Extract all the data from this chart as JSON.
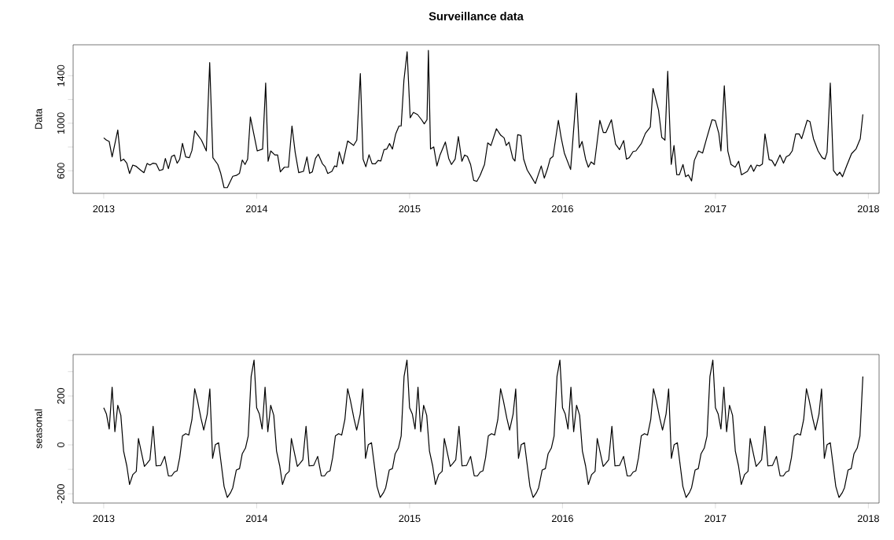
{
  "chart_data": [
    {
      "type": "line",
      "title": "Surveillance data",
      "ylabel": "Data",
      "color": "#000000",
      "xlim": [
        2012.8,
        2018.07
      ],
      "ylim": [
        410,
        1660
      ],
      "xticks": [
        2013,
        2014,
        2015,
        2016,
        2017,
        2018
      ],
      "yticks": [
        600,
        {
          "value": 800,
          "label": null
        },
        1000,
        {
          "value": 1200,
          "label": null
        },
        1400
      ],
      "x": [
        2013.0,
        2013.018,
        2013.036,
        2013.055,
        2013.092,
        2013.112,
        2013.13,
        2013.151,
        2013.169,
        2013.19,
        2013.213,
        2013.24,
        2013.263,
        2013.284,
        2013.302,
        2013.323,
        2013.343,
        2013.364,
        2013.387,
        2013.403,
        2013.423,
        2013.444,
        2013.462,
        2013.48,
        2013.497,
        2013.515,
        2013.536,
        2013.56,
        2013.577,
        2013.595,
        2013.639,
        2013.671,
        2013.693,
        2013.714,
        2013.746,
        2013.764,
        2013.787,
        2013.808,
        2013.844,
        2013.867,
        2013.888,
        2013.906,
        2013.924,
        2013.941,
        2013.959,
        2014.004,
        2014.039,
        2014.059,
        2014.075,
        2014.092,
        2014.119,
        2014.137,
        2014.155,
        2014.181,
        2014.208,
        2014.231,
        2014.252,
        2014.275,
        2014.306,
        2014.329,
        2014.346,
        2014.364,
        2014.385,
        2014.403,
        2014.43,
        2014.448,
        2014.465,
        2014.492,
        2014.51,
        2014.524,
        2014.54,
        2014.563,
        2014.595,
        2014.634,
        2014.655,
        2014.678,
        2014.696,
        2014.714,
        2014.735,
        2014.755,
        2014.776,
        2014.794,
        2014.812,
        2014.833,
        2014.851,
        2014.869,
        2014.888,
        2014.909,
        2014.931,
        2014.945,
        2014.963,
        2014.984,
        2015.004,
        2015.025,
        2015.052,
        2015.078,
        2015.096,
        2015.114,
        2015.123,
        2015.137,
        2015.158,
        2015.179,
        2015.199,
        2015.234,
        2015.256,
        2015.274,
        2015.298,
        2015.319,
        2015.342,
        2015.36,
        2015.378,
        2015.399,
        2015.419,
        2015.44,
        2015.461,
        2015.49,
        2015.511,
        2015.532,
        2015.568,
        2015.596,
        2015.618,
        2015.632,
        2015.65,
        2015.675,
        2015.689,
        2015.707,
        2015.728,
        2015.746,
        2015.769,
        2015.796,
        2015.822,
        2015.84,
        2015.861,
        2015.881,
        2015.902,
        2015.92,
        2015.938,
        2015.973,
        2015.991,
        2016.012,
        2016.053,
        2016.091,
        2016.11,
        2016.128,
        2016.151,
        2016.169,
        2016.187,
        2016.208,
        2016.244,
        2016.267,
        2016.284,
        2016.32,
        2016.347,
        2016.373,
        2016.4,
        2016.418,
        2016.436,
        2016.462,
        2016.48,
        2016.516,
        2016.542,
        2016.574,
        2016.592,
        2016.628,
        2016.649,
        2016.67,
        2016.688,
        2016.711,
        2016.729,
        2016.747,
        2016.764,
        2016.788,
        2016.805,
        2016.823,
        2016.844,
        2016.862,
        2016.889,
        2016.916,
        2016.942,
        2016.978,
        2016.999,
        2017.022,
        2017.036,
        2017.058,
        2017.081,
        2017.102,
        2017.129,
        2017.152,
        2017.17,
        2017.209,
        2017.232,
        2017.25,
        2017.271,
        2017.289,
        2017.307,
        2017.324,
        2017.351,
        2017.369,
        2017.39,
        2017.422,
        2017.445,
        2017.463,
        2017.484,
        2017.502,
        2017.525,
        2017.547,
        2017.564,
        2017.6,
        2017.618,
        2017.641,
        2017.671,
        2017.698,
        2017.716,
        2017.73,
        2017.751,
        2017.772,
        2017.796,
        2017.813,
        2017.831,
        2017.858,
        2017.89,
        2017.92,
        2017.947,
        2017.964
      ],
      "values": [
        877,
        858,
        846,
        717,
        943,
        682,
        698,
        664,
        577,
        648,
        637,
        607,
        584,
        662,
        648,
        664,
        659,
        602,
        611,
        703,
        618,
        721,
        733,
        664,
        698,
        831,
        717,
        710,
        771,
        936,
        858,
        767,
        1510,
        710,
        653,
        584,
        458,
        458,
        554,
        561,
        579,
        691,
        653,
        698,
        1053,
        767,
        783,
        1338,
        680,
        767,
        733,
        733,
        591,
        630,
        630,
        977,
        755,
        584,
        595,
        717,
        579,
        591,
        705,
        739,
        659,
        634,
        577,
        595,
        641,
        634,
        760,
        657,
        851,
        813,
        858,
        1418,
        698,
        634,
        735,
        659,
        659,
        687,
        682,
        778,
        783,
        829,
        783,
        909,
        977,
        977,
        1361,
        1601,
        1046,
        1091,
        1073,
        1030,
        995,
        1030,
        1613,
        783,
        801,
        641,
        733,
        842,
        703,
        653,
        698,
        888,
        680,
        733,
        721,
        653,
        520,
        511,
        561,
        653,
        835,
        813,
        954,
        899,
        877,
        813,
        840,
        705,
        682,
        904,
        897,
        698,
        607,
        550,
        493,
        561,
        641,
        538,
        618,
        703,
        721,
        1025,
        881,
        749,
        611,
        1254,
        794,
        847,
        698,
        630,
        675,
        653,
        1025,
        922,
        922,
        1030,
        824,
        778,
        854,
        698,
        710,
        762,
        767,
        831,
        915,
        968,
        1293,
        1110,
        881,
        858,
        1437,
        653,
        813,
        568,
        566,
        653,
        550,
        566,
        515,
        687,
        767,
        749,
        870,
        1030,
        1023,
        915,
        767,
        1316,
        767,
        653,
        630,
        680,
        566,
        595,
        648,
        595,
        648,
        641,
        657,
        910,
        694,
        687,
        641,
        733,
        664,
        717,
        733,
        767,
        910,
        910,
        870,
        1025,
        1014,
        870,
        767,
        710,
        698,
        755,
        1338,
        602,
        561,
        588,
        550,
        641,
        744,
        785,
        870,
        1075
      ]
    },
    {
      "type": "line",
      "ylabel": "seasonal",
      "color": "#000000",
      "xlim": [
        2012.8,
        2018.07
      ],
      "ylim": [
        -238,
        370
      ],
      "xticks": [
        2013,
        2014,
        2015,
        2016,
        2017,
        2018
      ],
      "yticks": [
        -200,
        {
          "value": -100,
          "label": null
        },
        0,
        {
          "value": 100,
          "label": null
        },
        200,
        {
          "value": 300,
          "label": null
        }
      ],
      "x": [
        2013.0,
        2013.018,
        2013.036,
        2013.055,
        2013.073,
        2013.092,
        2013.112,
        2013.13,
        2013.151,
        2013.169,
        2013.19,
        2013.213,
        2013.227,
        2013.266,
        2013.284,
        2013.302,
        2013.323,
        2013.343,
        2013.373,
        2013.399,
        2013.423,
        2013.444,
        2013.462,
        2013.48,
        2013.497,
        2013.515,
        2013.536,
        2013.556,
        2013.577,
        2013.595,
        2013.613,
        2013.636,
        2013.654,
        2013.677,
        2013.694,
        2013.712,
        2013.73,
        2013.751,
        2013.787,
        2013.808,
        2013.83,
        2013.844,
        2013.867,
        2013.888,
        2013.906,
        2013.927,
        2013.945,
        2013.964,
        2013.983,
        2014.0,
        2014.018,
        2014.036,
        2014.055,
        2014.073,
        2014.092,
        2014.112,
        2014.13,
        2014.151,
        2014.169,
        2014.19,
        2014.213,
        2014.227,
        2014.266,
        2014.284,
        2014.302,
        2014.323,
        2014.343,
        2014.373,
        2014.399,
        2014.423,
        2014.444,
        2014.462,
        2014.48,
        2014.497,
        2014.515,
        2014.536,
        2014.556,
        2014.577,
        2014.595,
        2014.613,
        2014.636,
        2014.654,
        2014.677,
        2014.694,
        2014.712,
        2014.73,
        2014.751,
        2014.787,
        2014.808,
        2014.83,
        2014.844,
        2014.867,
        2014.888,
        2014.906,
        2014.927,
        2014.945,
        2014.964,
        2014.983,
        2015.0,
        2015.018,
        2015.036,
        2015.055,
        2015.073,
        2015.092,
        2015.112,
        2015.13,
        2015.151,
        2015.169,
        2015.19,
        2015.213,
        2015.227,
        2015.266,
        2015.284,
        2015.302,
        2015.323,
        2015.343,
        2015.373,
        2015.399,
        2015.423,
        2015.444,
        2015.462,
        2015.48,
        2015.497,
        2015.515,
        2015.536,
        2015.556,
        2015.577,
        2015.595,
        2015.613,
        2015.636,
        2015.654,
        2015.677,
        2015.694,
        2015.712,
        2015.73,
        2015.751,
        2015.787,
        2015.808,
        2015.83,
        2015.844,
        2015.867,
        2015.888,
        2015.906,
        2015.927,
        2015.945,
        2015.964,
        2015.983,
        2016.0,
        2016.018,
        2016.036,
        2016.055,
        2016.073,
        2016.092,
        2016.112,
        2016.13,
        2016.151,
        2016.169,
        2016.19,
        2016.213,
        2016.227,
        2016.266,
        2016.284,
        2016.302,
        2016.323,
        2016.343,
        2016.373,
        2016.399,
        2016.423,
        2016.444,
        2016.462,
        2016.48,
        2016.497,
        2016.515,
        2016.536,
        2016.556,
        2016.577,
        2016.595,
        2016.613,
        2016.636,
        2016.654,
        2016.677,
        2016.694,
        2016.712,
        2016.73,
        2016.751,
        2016.787,
        2016.808,
        2016.83,
        2016.844,
        2016.867,
        2016.888,
        2016.906,
        2016.927,
        2016.945,
        2016.964,
        2016.983,
        2017.0,
        2017.018,
        2017.036,
        2017.055,
        2017.073,
        2017.092,
        2017.112,
        2017.13,
        2017.151,
        2017.169,
        2017.19,
        2017.213,
        2017.227,
        2017.266,
        2017.284,
        2017.302,
        2017.323,
        2017.343,
        2017.373,
        2017.399,
        2017.423,
        2017.444,
        2017.462,
        2017.48,
        2017.497,
        2017.515,
        2017.536,
        2017.556,
        2017.577,
        2017.595,
        2017.613,
        2017.636,
        2017.654,
        2017.677,
        2017.694,
        2017.712,
        2017.73,
        2017.751,
        2017.787,
        2017.808,
        2017.83,
        2017.844,
        2017.867,
        2017.888,
        2017.906,
        2017.927,
        2017.945,
        2017.964
      ],
      "values": [
        152,
        126,
        65,
        236,
        54,
        162,
        121,
        -25,
        -86,
        -162,
        -122,
        -108,
        26,
        -88,
        -75,
        -61,
        76,
        -86,
        -84,
        -47,
        -127,
        -127,
        -111,
        -106,
        -52,
        37,
        46,
        40,
        104,
        230,
        182,
        109,
        61,
        126,
        229,
        -55,
        1,
        9,
        -170,
        -215,
        -195,
        -175,
        -103,
        -97,
        -36,
        -13,
        37,
        280,
        347,
        152,
        126,
        65,
        236,
        54,
        162,
        121,
        -25,
        -86,
        -162,
        -122,
        -108,
        26,
        -88,
        -75,
        -61,
        76,
        -86,
        -84,
        -47,
        -127,
        -127,
        -111,
        -106,
        -52,
        37,
        46,
        40,
        104,
        230,
        182,
        109,
        61,
        126,
        229,
        -55,
        1,
        9,
        -170,
        -215,
        -195,
        -175,
        -103,
        -97,
        -36,
        -13,
        37,
        280,
        347,
        152,
        126,
        65,
        236,
        54,
        162,
        121,
        -25,
        -86,
        -162,
        -122,
        -108,
        26,
        -88,
        -75,
        -61,
        76,
        -86,
        -84,
        -47,
        -127,
        -127,
        -111,
        -106,
        -52,
        37,
        46,
        40,
        104,
        230,
        182,
        109,
        61,
        126,
        229,
        -55,
        1,
        9,
        -170,
        -215,
        -195,
        -175,
        -103,
        -97,
        -36,
        -13,
        37,
        280,
        347,
        152,
        126,
        65,
        236,
        54,
        162,
        121,
        -25,
        -86,
        -162,
        -122,
        -108,
        26,
        -88,
        -75,
        -61,
        76,
        -86,
        -84,
        -47,
        -127,
        -127,
        -111,
        -106,
        -52,
        37,
        46,
        40,
        104,
        230,
        182,
        109,
        61,
        126,
        229,
        -55,
        1,
        9,
        -170,
        -215,
        -195,
        -175,
        -103,
        -97,
        -36,
        -13,
        37,
        280,
        347,
        152,
        126,
        65,
        236,
        54,
        162,
        121,
        -25,
        -86,
        -162,
        -122,
        -108,
        26,
        -88,
        -75,
        -61,
        76,
        -86,
        -84,
        -47,
        -127,
        -127,
        -111,
        -106,
        -52,
        37,
        46,
        40,
        104,
        230,
        182,
        109,
        61,
        126,
        229,
        -55,
        1,
        9,
        -170,
        -215,
        -195,
        -175,
        -103,
        -97,
        -36,
        -13,
        37,
        280
      ]
    }
  ]
}
